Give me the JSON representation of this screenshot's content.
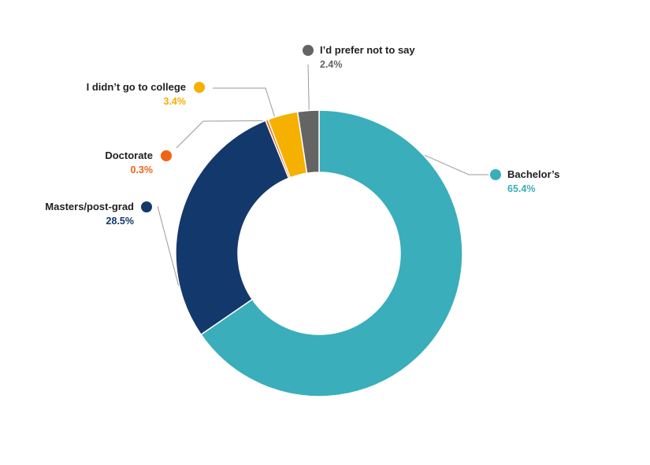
{
  "chart_data": {
    "type": "pie",
    "variant": "donut",
    "title": "",
    "slices": [
      {
        "label": "Bachelor’s",
        "value": 65.4,
        "value_label": "65.4%",
        "color": "#3aaeba"
      },
      {
        "label": "Masters/post-grad",
        "value": 28.5,
        "value_label": "28.5%",
        "color": "#13386b"
      },
      {
        "label": "Doctorate",
        "value": 0.3,
        "value_label": "0.3%",
        "color": "#f06414"
      },
      {
        "label": "I didn’t go to college",
        "value": 3.4,
        "value_label": "3.4%",
        "color": "#f5b000"
      },
      {
        "label": "I’d prefer not to say",
        "value": 2.4,
        "value_label": "2.4%",
        "color": "#646464"
      }
    ],
    "start": "top, clockwise",
    "legend": "callout labels around the donut"
  }
}
